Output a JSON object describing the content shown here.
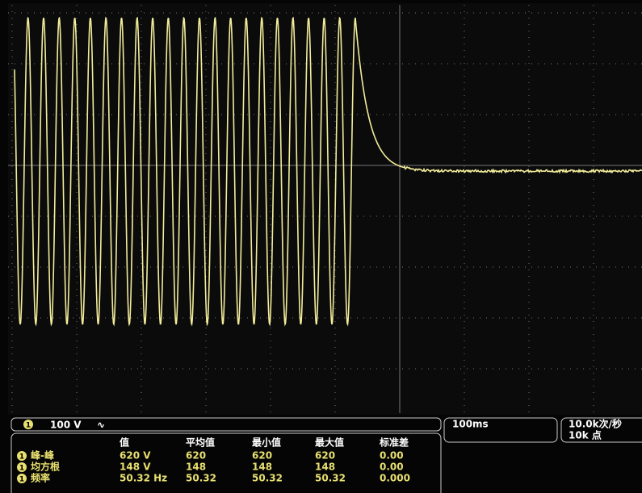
{
  "channel": {
    "number": "1",
    "scale": "100 V",
    "coupling": "∿"
  },
  "timebase": "100ms",
  "acquisition": {
    "rate": "10.0k次/秒",
    "points": "10k 点"
  },
  "measurements": {
    "headers": [
      "值",
      "平均值",
      "最小值",
      "最大值",
      "标准差"
    ],
    "rows": [
      {
        "channel": "1",
        "label": "峰-峰",
        "cells": [
          "620 V",
          "620",
          "620",
          "620",
          "0.00"
        ]
      },
      {
        "channel": "1",
        "label": "均方根",
        "cells": [
          "148 V",
          "148",
          "148",
          "148",
          "0.00"
        ]
      },
      {
        "channel": "1",
        "label": "频率",
        "cells": [
          "50.32 Hz",
          "50.32",
          "50.32",
          "50.32",
          "0.000"
        ]
      }
    ]
  }
}
